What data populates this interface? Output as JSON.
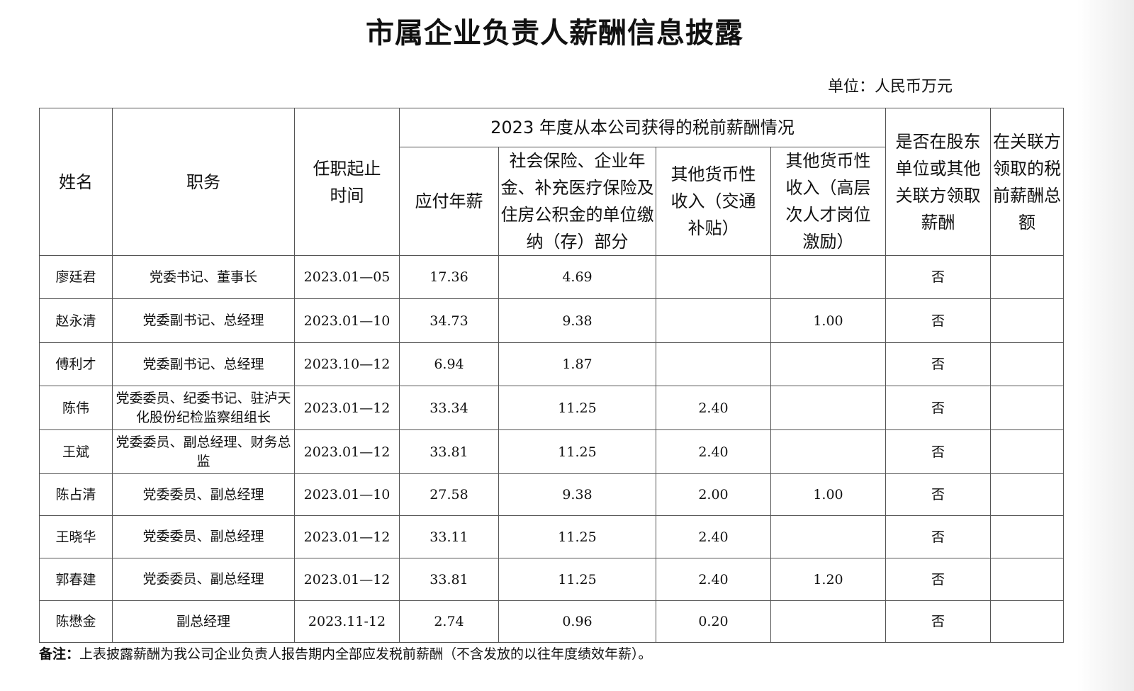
{
  "title": "市属企业负责人薪酬信息披露",
  "unit": "单位：人民币万元",
  "headers": {
    "name": "姓名",
    "position": "职务",
    "tenure": "任职起止时间",
    "group": "2023 年度从本公司获得的税前薪酬情况",
    "salary": "应付年薪",
    "insurance": "社会保险、企业年金、补充医疗保险及住房公积金的单位缴纳（存）部分",
    "other_transport": "其他货币性收入（交通补贴）",
    "other_talent": "其他货币性收入（高层次人才岗位激励）",
    "related_party": "是否在股东单位或其他关联方领取薪酬",
    "related_total": "在关联方领取的税前薪酬总额"
  },
  "rows": [
    {
      "name": "廖廷君",
      "position": "党委书记、董事长",
      "tenure": "2023.01—05",
      "salary": "17.36",
      "insurance": "4.69",
      "transport": "",
      "talent": "",
      "related": "否",
      "related_total": ""
    },
    {
      "name": "赵永清",
      "position": "党委副书记、总经理",
      "tenure": "2023.01—10",
      "salary": "34.73",
      "insurance": "9.38",
      "transport": "",
      "talent": "1.00",
      "related": "否",
      "related_total": ""
    },
    {
      "name": "傅利才",
      "position": "党委副书记、总经理",
      "tenure": "2023.10—12",
      "salary": "6.94",
      "insurance": "1.87",
      "transport": "",
      "talent": "",
      "related": "否",
      "related_total": ""
    },
    {
      "name": "陈伟",
      "position": "党委委员、纪委书记、驻泸天化股份纪检监察组组长",
      "tenure": "2023.01—12",
      "salary": "33.34",
      "insurance": "11.25",
      "transport": "2.40",
      "talent": "",
      "related": "否",
      "related_total": ""
    },
    {
      "name": "王斌",
      "position": "党委委员、副总经理、财务总监",
      "tenure": "2023.01—12",
      "salary": "33.81",
      "insurance": "11.25",
      "transport": "2.40",
      "talent": "",
      "related": "否",
      "related_total": ""
    },
    {
      "name": "陈占清",
      "position": "党委委员、副总经理",
      "tenure": "2023.01—10",
      "salary": "27.58",
      "insurance": "9.38",
      "transport": "2.00",
      "talent": "1.00",
      "related": "否",
      "related_total": ""
    },
    {
      "name": "王晓华",
      "position": "党委委员、副总经理",
      "tenure": "2023.01—12",
      "salary": "33.11",
      "insurance": "11.25",
      "transport": "2.40",
      "talent": "",
      "related": "否",
      "related_total": ""
    },
    {
      "name": "郭春建",
      "position": "党委委员、副总经理",
      "tenure": "2023.01—12",
      "salary": "33.81",
      "insurance": "11.25",
      "transport": "2.40",
      "talent": "1.20",
      "related": "否",
      "related_total": ""
    },
    {
      "name": "陈懋金",
      "position": "副总经理",
      "tenure": "2023.11-12",
      "salary": "2.74",
      "insurance": "0.96",
      "transport": "0.20",
      "talent": "",
      "related": "否",
      "related_total": ""
    }
  ],
  "note": {
    "label": "备注：",
    "text": "上表披露薪酬为我公司企业负责人报告期内全部应发税前薪酬（不含发放的以往年度绩效年薪）。"
  }
}
